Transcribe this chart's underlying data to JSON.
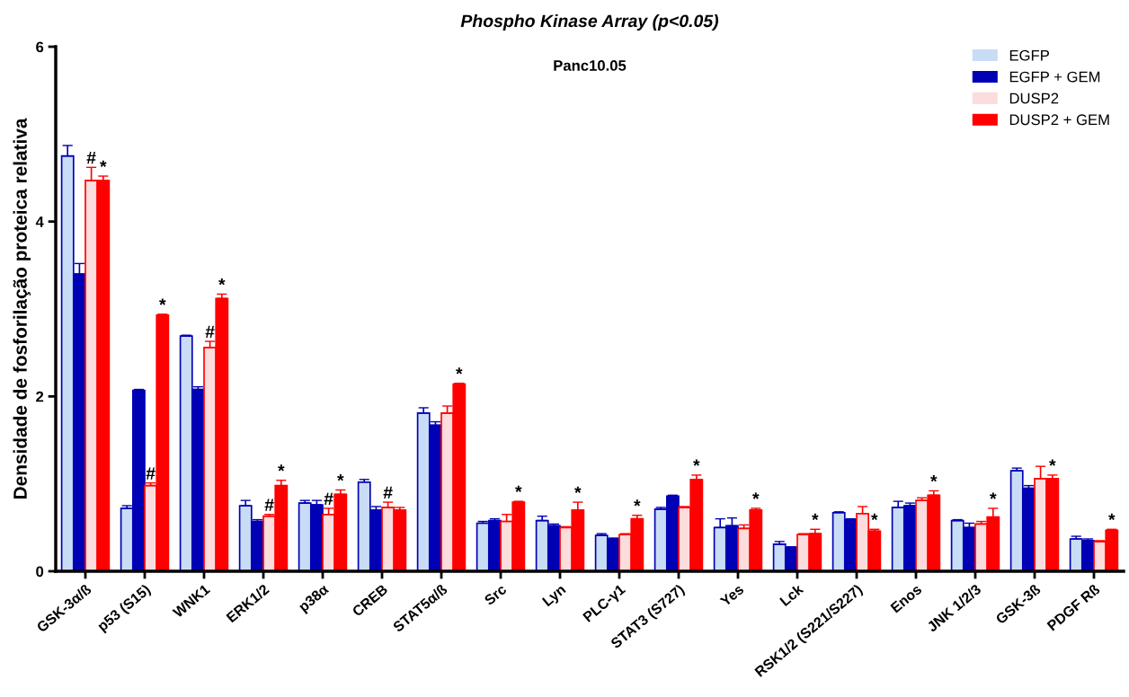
{
  "chart_data": {
    "type": "bar",
    "title": "Phospho Kinase Array (p<0.05)",
    "subtitle": "Panc10.05",
    "ylabel": "Densidade de fosforilação proteica relativa",
    "categories": [
      "GSK-3α/ß",
      "p53 (S15)",
      "WNK1",
      "ERK1/2",
      "p38α",
      "CREB",
      "STAT5α/ß",
      "Src",
      "Lyn",
      "PLC-γ1",
      "STAT3 (S727)",
      "Yes",
      "Lck",
      "RSK1/2 (S221/S227)",
      "Enos",
      "JNK 1/2/3",
      "GSK-3ß",
      "PDGF Rß"
    ],
    "ylim": [
      0,
      6
    ],
    "yticks": [
      0,
      2,
      4,
      6
    ],
    "grid": false,
    "legend": "top right",
    "series": [
      {
        "name": "EGFP",
        "color": "#c9dcf5",
        "values": [
          4.75,
          0.72,
          2.69,
          0.75,
          0.78,
          1.02,
          1.81,
          0.55,
          0.58,
          0.41,
          0.71,
          0.5,
          0.31,
          0.67,
          0.73,
          0.58,
          1.15,
          0.37
        ],
        "errors": [
          [
            4.75,
            4.87
          ],
          [
            0.72,
            0.75
          ],
          [
            2.69,
            2.7
          ],
          [
            0.75,
            0.81
          ],
          [
            0.78,
            0.81
          ],
          [
            1.02,
            1.05
          ],
          [
            1.81,
            1.87
          ],
          [
            0.55,
            0.57
          ],
          [
            0.58,
            0.63
          ],
          [
            0.41,
            0.43
          ],
          [
            0.71,
            0.73
          ],
          [
            0.5,
            0.6
          ],
          [
            0.31,
            0.34
          ],
          [
            0.67,
            0.68
          ],
          [
            0.73,
            0.8
          ],
          [
            0.58,
            0.59
          ],
          [
            1.15,
            1.18
          ],
          [
            0.37,
            0.4
          ]
        ]
      },
      {
        "name": "EGFP + GEM",
        "color": "#0000b4",
        "values": [
          3.4,
          2.07,
          2.08,
          0.57,
          0.76,
          0.7,
          1.67,
          0.58,
          0.52,
          0.37,
          0.86,
          0.52,
          0.27,
          0.59,
          0.75,
          0.5,
          0.95,
          0.35
        ],
        "errors": [
          [
            3.4,
            3.52
          ],
          [
            2.07,
            2.08
          ],
          [
            2.08,
            2.11
          ],
          [
            0.57,
            0.59
          ],
          [
            0.76,
            0.81
          ],
          [
            0.7,
            0.74
          ],
          [
            1.67,
            1.71
          ],
          [
            0.58,
            0.6
          ],
          [
            0.52,
            0.54
          ],
          [
            0.37,
            0.38
          ],
          [
            0.86,
            0.87
          ],
          [
            0.52,
            0.61
          ],
          [
            0.27,
            0.28
          ],
          [
            0.59,
            0.6
          ],
          [
            0.75,
            0.78
          ],
          [
            0.5,
            0.55
          ],
          [
            0.95,
            0.98
          ],
          [
            0.35,
            0.37
          ]
        ]
      },
      {
        "name": "DUSP2",
        "color": "#fcdcdc",
        "value_labels": [
          "#",
          "#",
          "#",
          "#",
          "#",
          "#",
          null,
          null,
          null,
          null,
          null,
          null,
          null,
          null,
          null,
          null,
          null,
          null
        ],
        "values": [
          4.47,
          0.98,
          2.56,
          0.63,
          0.65,
          0.73,
          1.81,
          0.57,
          0.5,
          0.42,
          0.73,
          0.49,
          0.42,
          0.66,
          0.81,
          0.54,
          1.06,
          0.34
        ],
        "errors": [
          [
            4.47,
            4.62
          ],
          [
            0.98,
            1.01
          ],
          [
            2.56,
            2.63
          ],
          [
            0.63,
            0.65
          ],
          [
            0.65,
            0.72
          ],
          [
            0.73,
            0.79
          ],
          [
            1.81,
            1.89
          ],
          [
            0.57,
            0.65
          ],
          [
            0.5,
            0.51
          ],
          [
            0.42,
            0.43
          ],
          [
            0.73,
            0.74
          ],
          [
            0.49,
            0.53
          ],
          [
            0.42,
            0.43
          ],
          [
            0.66,
            0.74
          ],
          [
            0.81,
            0.84
          ],
          [
            0.54,
            0.57
          ],
          [
            1.06,
            1.2
          ],
          [
            0.34,
            0.35
          ]
        ]
      },
      {
        "name": "DUSP2 + GEM",
        "color": "#ff0000",
        "value_labels": [
          "*",
          "*",
          "*",
          "*",
          "*",
          null,
          "*",
          "*",
          "*",
          "*",
          "*",
          "*",
          "*",
          "*",
          "*",
          "*",
          "*",
          "*"
        ],
        "values": [
          4.47,
          2.93,
          3.12,
          0.98,
          0.88,
          0.7,
          2.14,
          0.79,
          0.7,
          0.6,
          1.05,
          0.7,
          0.43,
          0.46,
          0.87,
          0.62,
          1.06,
          0.47
        ],
        "errors": [
          [
            4.47,
            4.52
          ],
          [
            2.93,
            2.94
          ],
          [
            3.12,
            3.17
          ],
          [
            0.98,
            1.04
          ],
          [
            0.88,
            0.93
          ],
          [
            0.7,
            0.73
          ],
          [
            2.14,
            2.15
          ],
          [
            0.79,
            0.8
          ],
          [
            0.7,
            0.79
          ],
          [
            0.6,
            0.64
          ],
          [
            1.05,
            1.1
          ],
          [
            0.7,
            0.72
          ],
          [
            0.43,
            0.48
          ],
          [
            0.46,
            0.48
          ],
          [
            0.87,
            0.92
          ],
          [
            0.62,
            0.72
          ],
          [
            1.06,
            1.1
          ],
          [
            0.47,
            0.48
          ]
        ]
      }
    ]
  }
}
